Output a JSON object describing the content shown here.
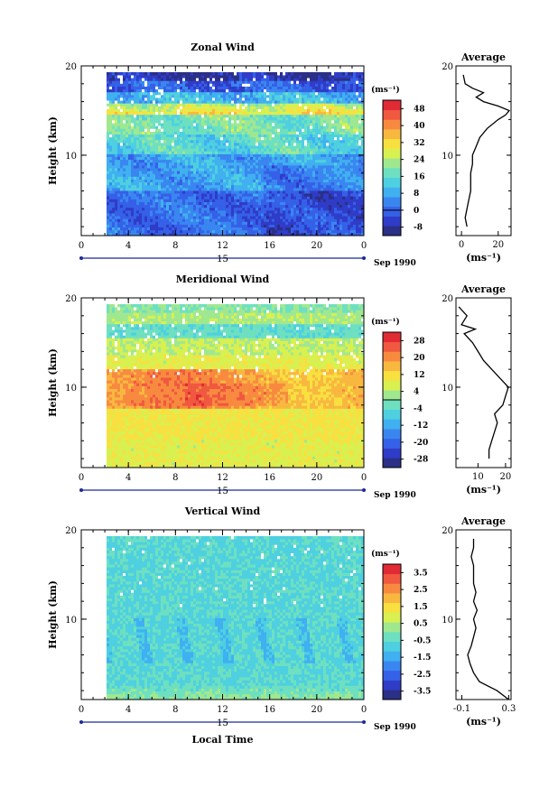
{
  "chart_data": [
    {
      "type": "heatmap",
      "title": "Zonal Wind",
      "ylabel": "Height (km)",
      "ylim": [
        1,
        20
      ],
      "y_ticks": [
        "20",
        "10"
      ],
      "x_ticks": [
        "0",
        "4",
        "8",
        "12",
        "16",
        "20",
        "0"
      ],
      "date_label": "15",
      "date_suffix": "Sep 1990",
      "colorbar_unit": "(ms⁻¹)",
      "colorbar_ticks": [
        "48",
        "40",
        "32",
        "24",
        "16",
        "8",
        "0",
        "-8"
      ],
      "colorbar_range": [
        -12,
        52
      ],
      "zero_tick_index": 6,
      "colors": [
        "#2b2f86",
        "#2f3cc8",
        "#3560e8",
        "#3a86f0",
        "#40b0f0",
        "#4ed0e0",
        "#6ee0c0",
        "#a0e890",
        "#d8f050",
        "#f8e040",
        "#f8b840",
        "#f88a40",
        "#f05840",
        "#e02a34"
      ],
      "profile": {
        "title": "Average",
        "xlabel": "(ms⁻¹)",
        "x_ticks": [
          "0",
          "20"
        ],
        "xlim": [
          -3,
          27
        ],
        "heights": [
          2,
          3,
          4,
          5,
          6,
          7,
          8,
          9,
          10,
          11,
          12,
          13,
          14,
          14.5,
          15,
          15.5,
          16,
          16.5,
          17,
          17.5,
          18,
          19
        ],
        "values": [
          3,
          2,
          3,
          4,
          5,
          5,
          5,
          6,
          6,
          8,
          10,
          14,
          20,
          24,
          26,
          20,
          12,
          8,
          12,
          6,
          2,
          1
        ]
      }
    },
    {
      "type": "heatmap",
      "title": "Meridional Wind",
      "ylabel": "Height (km)",
      "ylim": [
        1,
        20
      ],
      "y_ticks": [
        "20",
        "10"
      ],
      "x_ticks": [
        "0",
        "4",
        "8",
        "12",
        "16",
        "20",
        "0"
      ],
      "date_label": "15",
      "date_suffix": "Sep 1990",
      "colorbar_unit": "(ms⁻¹)",
      "colorbar_ticks": [
        "28",
        "20",
        "12",
        "4",
        "-4",
        "-12",
        "-20",
        "-28"
      ],
      "colorbar_range": [
        -32,
        32
      ],
      "zero_tick_index": 3.5,
      "colors": [
        "#2b2f86",
        "#2f3cc8",
        "#3560e8",
        "#3a86f0",
        "#40b0f0",
        "#4ed0e0",
        "#6ee0c0",
        "#a0e890",
        "#d8f050",
        "#f8e040",
        "#f8b840",
        "#f88a40",
        "#f05840",
        "#e02a34"
      ],
      "profile": {
        "title": "Average",
        "xlabel": "(ms⁻¹)",
        "x_ticks": [
          "10",
          "20"
        ],
        "xlim": [
          2,
          22
        ],
        "heights": [
          2,
          3,
          4,
          5,
          6,
          7,
          8,
          9,
          10,
          11,
          12,
          13,
          14,
          15,
          16,
          16.5,
          17,
          18,
          19
        ],
        "values": [
          14,
          14,
          15,
          16,
          17,
          16,
          19,
          20,
          21,
          18,
          15,
          12,
          10,
          8,
          5,
          9,
          4,
          6,
          3
        ]
      }
    },
    {
      "type": "heatmap",
      "title": "Vertical Wind",
      "ylabel": "Height (km)",
      "ylim": [
        1,
        20
      ],
      "y_ticks": [
        "20",
        "10"
      ],
      "x_ticks": [
        "0",
        "4",
        "8",
        "12",
        "16",
        "20",
        "0"
      ],
      "date_label": "15",
      "date_suffix": "Sep 1990",
      "xlabel": "Local Time",
      "colorbar_unit": "(ms⁻¹)",
      "colorbar_ticks": [
        "3.5",
        "2.5",
        "1.5",
        "0.5",
        "-0.5",
        "-1.5",
        "-2.5",
        "-3.5"
      ],
      "colorbar_range": [
        -4,
        4
      ],
      "colors": [
        "#2b2f86",
        "#2f3cc8",
        "#3560e8",
        "#3a86f0",
        "#40b0f0",
        "#4ed0e0",
        "#6ee0c0",
        "#a0e890",
        "#d8f050",
        "#f8e040",
        "#f8b840",
        "#f88a40",
        "#f05840",
        "#e02a34"
      ],
      "profile": {
        "title": "Average",
        "xlabel": "(ms⁻¹)",
        "x_ticks": [
          "-0.1",
          "0.3"
        ],
        "xlim": [
          -0.15,
          0.32
        ],
        "heights": [
          1,
          2,
          3,
          4,
          5,
          6,
          7,
          8,
          9,
          10,
          11,
          12,
          13,
          14,
          15,
          16,
          17,
          18,
          19
        ],
        "values": [
          0.3,
          0.2,
          0.05,
          0.0,
          -0.03,
          -0.05,
          -0.02,
          0.0,
          0.02,
          0.0,
          0.03,
          0.0,
          0.02,
          0.0,
          0.0,
          0.0,
          -0.02,
          0.0,
          0.0
        ]
      }
    }
  ]
}
